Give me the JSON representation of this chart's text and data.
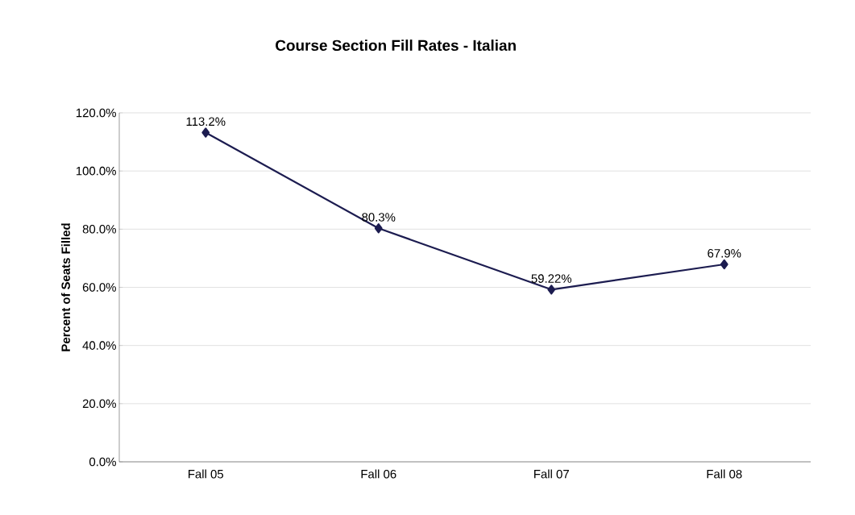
{
  "chart_data": {
    "type": "line",
    "title": "Course Section Fill Rates - Italian",
    "ylabel": "Percent of Seats Filled",
    "categories": [
      "Fall 05",
      "Fall 06",
      "Fall 07",
      "Fall 08"
    ],
    "series": [
      {
        "color": "#1c1c50",
        "values": [
          113.2,
          80.3,
          59.22,
          67.9
        ],
        "value_labels": [
          "113.2%",
          "80.3%",
          "59.22%",
          "67.9%"
        ]
      }
    ],
    "ylim": [
      0,
      120
    ],
    "yticks": [
      {
        "value": 0,
        "label": "0.0%"
      },
      {
        "value": 20,
        "label": "20.0%"
      },
      {
        "value": 40,
        "label": "40.0%"
      },
      {
        "value": 60,
        "label": "60.0%"
      },
      {
        "value": 80,
        "label": "80.0%"
      },
      {
        "value": 100,
        "label": "100.0%"
      },
      {
        "value": 120,
        "label": "120.0%"
      }
    ],
    "grid": "y",
    "marker": "diamond",
    "line_style": "solid"
  }
}
